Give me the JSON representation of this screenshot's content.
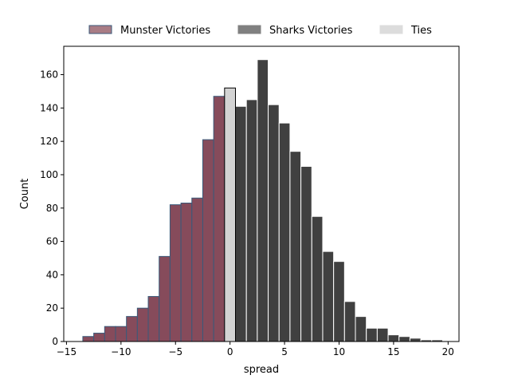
{
  "chart_data": {
    "type": "bar",
    "title": "",
    "xlabel": "spread",
    "ylabel": "Count",
    "xlim": [
      -15.25,
      21.0
    ],
    "ylim": [
      0,
      177
    ],
    "xticks": [
      -15,
      -10,
      -5,
      0,
      5,
      10,
      15,
      20
    ],
    "yticks": [
      0,
      20,
      40,
      60,
      80,
      100,
      120,
      140,
      160
    ],
    "grid": false,
    "legend_position": "top-center",
    "bin_width": 1,
    "colors": {
      "munster": "#864b5b",
      "munster_edge": "#3a5a7a",
      "munster_legend": "#a97c85",
      "sharks": "#404040",
      "sharks_edge": "#ffffff",
      "sharks_legend": "#808080",
      "ties": "#d3d3d3",
      "ties_edge": "#000000",
      "ties_legend": "#dcdcdc"
    },
    "series": [
      {
        "name": "Munster Victories",
        "key": "munster",
        "x": [
          -13,
          -12,
          -11,
          -10,
          -9,
          -8,
          -7,
          -6,
          -5,
          -4,
          -3,
          -2,
          -1
        ],
        "values": [
          3,
          5,
          9,
          9,
          15,
          20,
          27,
          51,
          82,
          83,
          86,
          121,
          147
        ]
      },
      {
        "name": "Sharks Victories",
        "key": "sharks",
        "x": [
          1,
          2,
          3,
          4,
          5,
          6,
          7,
          8,
          9,
          10,
          11,
          12,
          13,
          14,
          15,
          16,
          17,
          18,
          19
        ],
        "values": [
          141,
          145,
          169,
          142,
          131,
          114,
          105,
          75,
          54,
          48,
          24,
          15,
          8,
          8,
          4,
          3,
          2,
          1,
          1
        ]
      },
      {
        "name": "Ties",
        "key": "ties",
        "x": [
          0
        ],
        "values": [
          152
        ]
      }
    ]
  }
}
